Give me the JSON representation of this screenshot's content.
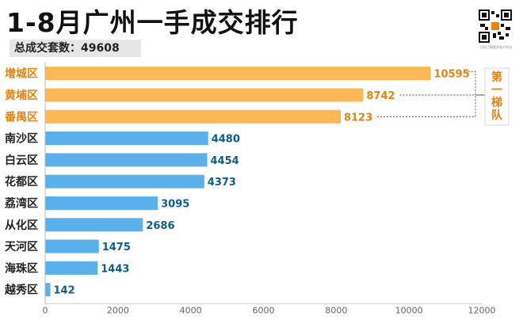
{
  "header": {
    "title": "1-8月广州一手成交排行",
    "total_label": "总成交套数：49608",
    "qr_caption": "扫码了解更多地产资讯"
  },
  "chart_data": {
    "type": "bar",
    "orientation": "horizontal",
    "categories": [
      "增城区",
      "黄埔区",
      "番禺区",
      "南沙区",
      "白云区",
      "花都区",
      "荔湾区",
      "从化区",
      "天河区",
      "海珠区",
      "越秀区"
    ],
    "values": [
      10595,
      8742,
      8123,
      4480,
      4454,
      4373,
      3095,
      2686,
      1475,
      1443,
      142
    ],
    "xlim": [
      0,
      12000
    ],
    "xticks": [
      0,
      2000,
      4000,
      6000,
      8000,
      10000,
      12000
    ],
    "grid": false,
    "highlight_count": 3,
    "colors": {
      "highlight": "#FBB854",
      "highlight_text": "#E8820E",
      "normal": "#5AB0EA",
      "normal_text": "#0D5C8A",
      "category_text": "#222222",
      "axis_text": "#666666"
    },
    "annotation": {
      "text": "第一梯队",
      "color": "#E8820E"
    }
  }
}
